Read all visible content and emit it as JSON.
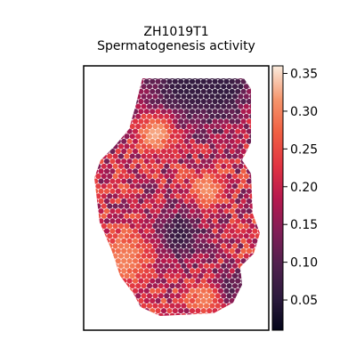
{
  "chart_data": {
    "type": "heatmap",
    "title": "ZH1019T1",
    "subtitle": "Spermatogenesis activity",
    "xlabel": "",
    "ylabel": "",
    "grid": false,
    "legend": "colorbar-right",
    "colormap": "rocket",
    "colorbar": {
      "range": [
        0.01,
        0.36
      ],
      "ticks": [
        0.05,
        0.1,
        0.15,
        0.2,
        0.25,
        0.3,
        0.35
      ],
      "tick_labels": [
        "0.05",
        "0.10",
        "0.15",
        "0.20",
        "0.25",
        "0.30",
        "0.35"
      ]
    },
    "colors": {
      "low": "#03051a",
      "mid_low": "#701f57",
      "mid": "#e13342",
      "mid_high": "#f37651",
      "high": "#faebdd"
    },
    "regions": {
      "dark_top_band": 0.06,
      "light_patch_upper_left": 0.33,
      "light_patch_center": 0.32,
      "dark_center": 0.06,
      "light_left_lower": 0.3,
      "dark_right_lower": 0.07,
      "light_bottom": 0.3,
      "typical_value": 0.2
    }
  }
}
